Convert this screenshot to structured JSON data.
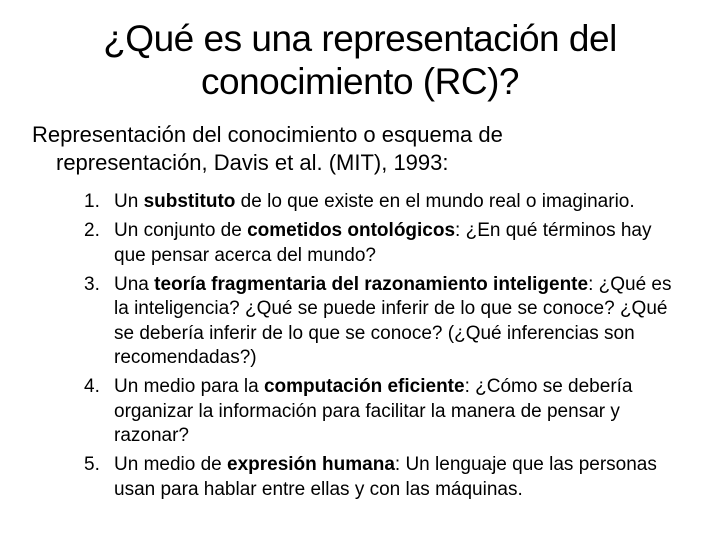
{
  "title": "¿Qué es una representación del conocimiento (RC)?",
  "subtitle_line1": "Representación del conocimiento o esquema de",
  "subtitle_line2": "representación, Davis et al. (MIT), 1993:",
  "items": [
    {
      "num": "1.",
      "pre": "Un ",
      "bold": "substituto",
      "post": " de lo que existe en el mundo real o imaginario."
    },
    {
      "num": "2.",
      "pre": "Un conjunto de ",
      "bold": "cometidos ontológicos",
      "post": ": ¿En qué términos hay que pensar acerca del mundo?"
    },
    {
      "num": "3.",
      "pre": "Una ",
      "bold": "teoría fragmentaria del razonamiento inteligente",
      "post": ": ¿Qué es la inteligencia? ¿Qué se puede inferir de lo que se conoce? ¿Qué se debería inferir de lo que se conoce? (¿Qué inferencias son recomendadas?)"
    },
    {
      "num": "4.",
      "pre": "Un medio para la ",
      "bold": "computación eficiente",
      "post": ": ¿Cómo se debería organizar la información para facilitar la manera de pensar y razonar?"
    },
    {
      "num": "5.",
      "pre": "Un medio de ",
      "bold": "expresión humana",
      "post": ": Un lenguaje que las personas usan para hablar entre ellas y con las máquinas."
    }
  ]
}
